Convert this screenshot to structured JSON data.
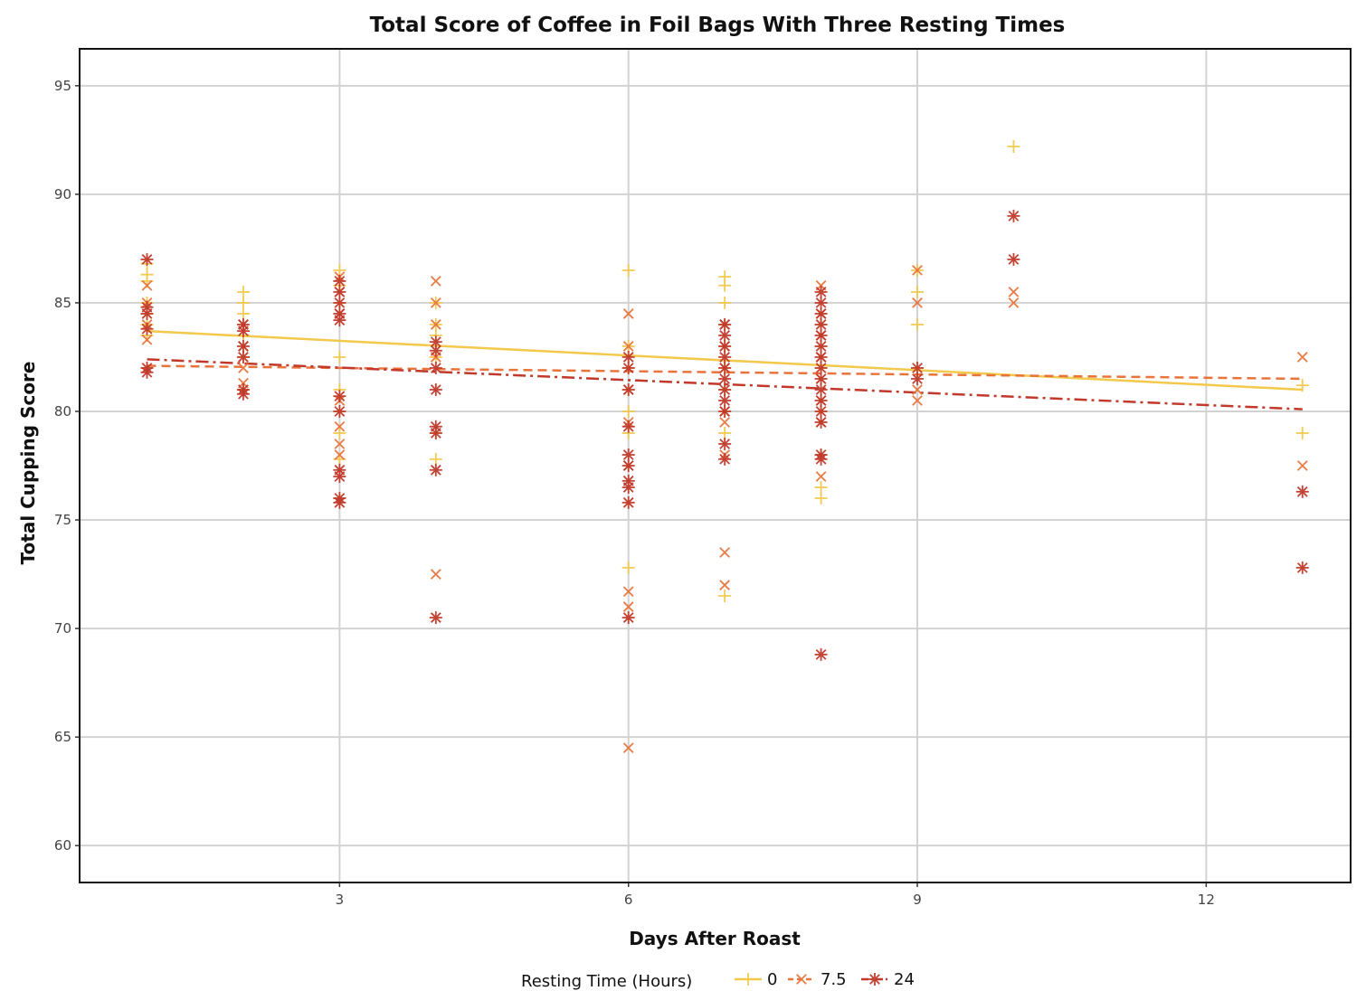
{
  "chart_data": {
    "type": "scatter",
    "title": "Total Score of Coffee in Foil Bags With Three Resting Times",
    "xlabel": "Days After Roast",
    "ylabel": "Total Cupping Score",
    "xlim": [
      0.3,
      13.5
    ],
    "ylim": [
      58.3,
      96.7
    ],
    "xticks": [
      3,
      6,
      9,
      12
    ],
    "yticks": [
      60,
      65,
      70,
      75,
      80,
      85,
      90,
      95
    ],
    "grid": true,
    "legend": {
      "title": "Resting Time (Hours)",
      "placement": "bottom"
    },
    "series": [
      {
        "name": "0",
        "marker": "plus",
        "color": "#f2c94c",
        "line_style": "solid",
        "trend": [
          [
            1,
            83.7
          ],
          [
            13,
            81.0
          ]
        ],
        "points": [
          [
            1,
            86.8
          ],
          [
            1,
            86.3
          ],
          [
            1,
            86.0
          ],
          [
            1,
            85.0
          ],
          [
            1,
            84.5
          ],
          [
            1,
            84.0
          ],
          [
            1,
            83.5
          ],
          [
            1,
            82.0
          ],
          [
            2,
            85.5
          ],
          [
            2,
            85.0
          ],
          [
            2,
            84.5
          ],
          [
            2,
            83.5
          ],
          [
            2,
            82.5
          ],
          [
            2,
            81.0
          ],
          [
            3,
            86.5
          ],
          [
            3,
            85.8
          ],
          [
            3,
            85.0
          ],
          [
            3,
            82.5
          ],
          [
            3,
            81.0
          ],
          [
            3,
            80.0
          ],
          [
            3,
            79.0
          ],
          [
            3,
            77.8
          ],
          [
            3,
            76.0
          ],
          [
            4,
            85.0
          ],
          [
            4,
            84.0
          ],
          [
            4,
            83.5
          ],
          [
            4,
            82.5
          ],
          [
            4,
            79.0
          ],
          [
            4,
            77.8
          ],
          [
            6,
            86.5
          ],
          [
            6,
            83.0
          ],
          [
            6,
            82.0
          ],
          [
            6,
            81.0
          ],
          [
            6,
            80.0
          ],
          [
            6,
            79.0
          ],
          [
            6,
            72.8
          ],
          [
            7,
            86.2
          ],
          [
            7,
            85.8
          ],
          [
            7,
            85.0
          ],
          [
            7,
            84.0
          ],
          [
            7,
            83.0
          ],
          [
            7,
            82.0
          ],
          [
            7,
            81.0
          ],
          [
            7,
            80.0
          ],
          [
            7,
            79.0
          ],
          [
            7,
            71.5
          ],
          [
            8,
            84.0
          ],
          [
            8,
            83.0
          ],
          [
            8,
            82.0
          ],
          [
            8,
            80.0
          ],
          [
            8,
            78.0
          ],
          [
            8,
            76.5
          ],
          [
            8,
            76.0
          ],
          [
            9,
            86.5
          ],
          [
            9,
            85.5
          ],
          [
            9,
            84.0
          ],
          [
            9,
            82.0
          ],
          [
            10,
            92.2
          ],
          [
            13,
            81.2
          ],
          [
            13,
            79.0
          ]
        ]
      },
      {
        "name": "7.5",
        "marker": "x",
        "color": "#e8743b",
        "line_style": "dashed",
        "trend": [
          [
            1,
            82.1
          ],
          [
            13,
            81.5
          ]
        ],
        "points": [
          [
            1,
            85.8
          ],
          [
            1,
            85.0
          ],
          [
            1,
            84.0
          ],
          [
            1,
            83.3
          ],
          [
            2,
            84.0
          ],
          [
            2,
            83.0
          ],
          [
            2,
            82.0
          ],
          [
            2,
            81.3
          ],
          [
            3,
            86.2
          ],
          [
            3,
            85.5
          ],
          [
            3,
            84.5
          ],
          [
            3,
            80.5
          ],
          [
            3,
            79.3
          ],
          [
            3,
            78.5
          ],
          [
            3,
            78.0
          ],
          [
            4,
            86.0
          ],
          [
            4,
            85.0
          ],
          [
            4,
            84.0
          ],
          [
            4,
            82.5
          ],
          [
            4,
            72.5
          ],
          [
            6,
            84.5
          ],
          [
            6,
            83.0
          ],
          [
            6,
            81.0
          ],
          [
            6,
            79.5
          ],
          [
            6,
            77.5
          ],
          [
            6,
            71.7
          ],
          [
            6,
            71.0
          ],
          [
            6,
            64.5
          ],
          [
            7,
            84.0
          ],
          [
            7,
            83.0
          ],
          [
            7,
            82.0
          ],
          [
            7,
            80.0
          ],
          [
            7,
            79.5
          ],
          [
            7,
            78.0
          ],
          [
            7,
            73.5
          ],
          [
            7,
            72.0
          ],
          [
            8,
            85.8
          ],
          [
            8,
            84.5
          ],
          [
            8,
            83.5
          ],
          [
            8,
            82.5
          ],
          [
            8,
            81.5
          ],
          [
            8,
            80.5
          ],
          [
            8,
            79.5
          ],
          [
            8,
            77.0
          ],
          [
            9,
            86.5
          ],
          [
            9,
            85.0
          ],
          [
            9,
            81.0
          ],
          [
            9,
            80.5
          ],
          [
            10,
            85.5
          ],
          [
            10,
            85.0
          ],
          [
            13,
            82.5
          ],
          [
            13,
            77.5
          ]
        ]
      },
      {
        "name": "24",
        "marker": "asterisk",
        "color": "#c0392b",
        "line_style": "dashdot",
        "trend": [
          [
            1,
            82.4
          ],
          [
            13,
            80.1
          ]
        ],
        "points": [
          [
            1,
            87.0
          ],
          [
            1,
            84.8
          ],
          [
            1,
            84.5
          ],
          [
            1,
            83.8
          ],
          [
            1,
            82.0
          ],
          [
            1,
            81.8
          ],
          [
            2,
            84.0
          ],
          [
            2,
            83.7
          ],
          [
            2,
            83.0
          ],
          [
            2,
            82.5
          ],
          [
            2,
            81.0
          ],
          [
            2,
            80.8
          ],
          [
            3,
            86.0
          ],
          [
            3,
            85.5
          ],
          [
            3,
            85.0
          ],
          [
            3,
            84.5
          ],
          [
            3,
            84.2
          ],
          [
            3,
            80.7
          ],
          [
            3,
            80.0
          ],
          [
            3,
            77.3
          ],
          [
            3,
            77.0
          ],
          [
            3,
            76.0
          ],
          [
            3,
            75.8
          ],
          [
            4,
            83.2
          ],
          [
            4,
            82.8
          ],
          [
            4,
            82.0
          ],
          [
            4,
            81.0
          ],
          [
            4,
            79.3
          ],
          [
            4,
            79.0
          ],
          [
            4,
            77.3
          ],
          [
            4,
            70.5
          ],
          [
            6,
            82.5
          ],
          [
            6,
            82.0
          ],
          [
            6,
            81.0
          ],
          [
            6,
            79.3
          ],
          [
            6,
            78.0
          ],
          [
            6,
            77.5
          ],
          [
            6,
            76.8
          ],
          [
            6,
            76.5
          ],
          [
            6,
            75.8
          ],
          [
            6,
            70.5
          ],
          [
            7,
            84.0
          ],
          [
            7,
            83.5
          ],
          [
            7,
            83.0
          ],
          [
            7,
            82.5
          ],
          [
            7,
            82.0
          ],
          [
            7,
            81.5
          ],
          [
            7,
            81.0
          ],
          [
            7,
            80.5
          ],
          [
            7,
            80.0
          ],
          [
            7,
            78.5
          ],
          [
            7,
            77.8
          ],
          [
            8,
            85.5
          ],
          [
            8,
            85.0
          ],
          [
            8,
            84.5
          ],
          [
            8,
            84.0
          ],
          [
            8,
            83.5
          ],
          [
            8,
            83.0
          ],
          [
            8,
            82.5
          ],
          [
            8,
            82.0
          ],
          [
            8,
            81.5
          ],
          [
            8,
            81.0
          ],
          [
            8,
            80.5
          ],
          [
            8,
            80.0
          ],
          [
            8,
            79.5
          ],
          [
            8,
            78.0
          ],
          [
            8,
            77.8
          ],
          [
            8,
            68.8
          ],
          [
            9,
            82.0
          ],
          [
            9,
            81.5
          ],
          [
            10,
            89.0
          ],
          [
            10,
            87.0
          ],
          [
            13,
            76.3
          ],
          [
            13,
            72.8
          ]
        ]
      }
    ]
  }
}
